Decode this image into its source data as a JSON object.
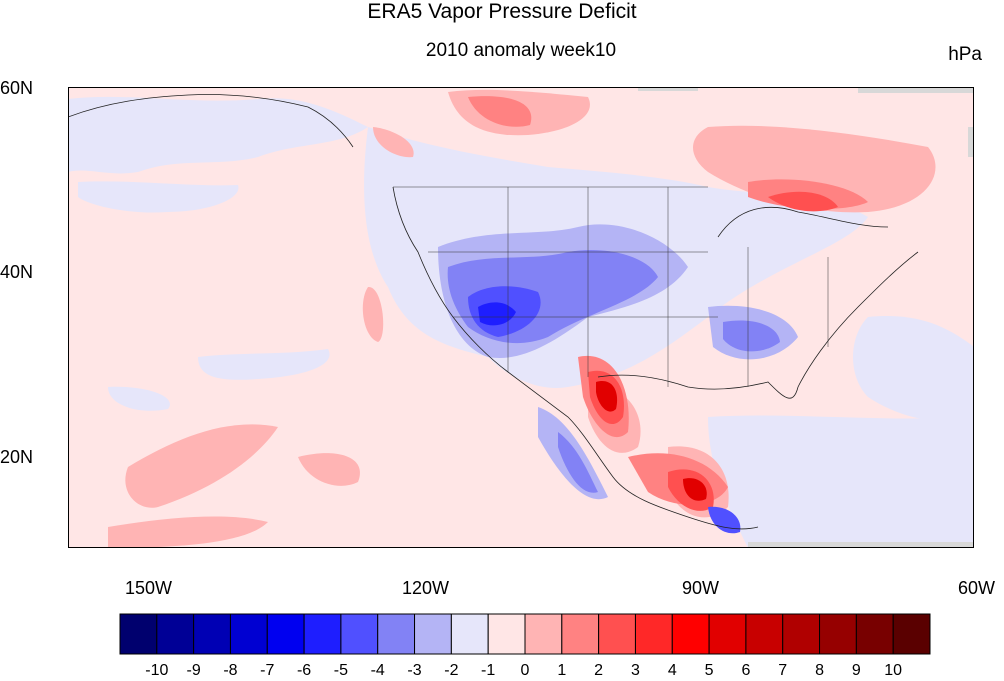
{
  "title": "ERA5 Vapor Pressure Deficit",
  "subtitle": "2010 anomaly week10",
  "units": "hPa",
  "map": {
    "projection": "cylindrical-equidistant",
    "lon_range": [
      -159,
      -60
    ],
    "lat_range": [
      10,
      60
    ],
    "lat_labels": [
      "60N",
      "40N",
      "20N"
    ],
    "lon_labels": [
      "150W",
      "120W",
      "90W",
      "60W"
    ],
    "variable": "vapor pressure deficit anomaly"
  },
  "colorbar": {
    "labels": [
      "-10",
      "-9",
      "-8",
      "-7",
      "-6",
      "-5",
      "-4",
      "-3",
      "-2",
      "-1",
      "0",
      "1",
      "2",
      "3",
      "4",
      "5",
      "6",
      "7",
      "8",
      "9",
      "10"
    ],
    "colors": [
      "#00006e",
      "#000096",
      "#0000b4",
      "#0000d2",
      "#0000f0",
      "#1e1eff",
      "#5050ff",
      "#8282f5",
      "#b4b4f5",
      "#e6e6fa",
      "#ffe6e6",
      "#ffb4b4",
      "#ff8282",
      "#ff5050",
      "#ff2828",
      "#ff0000",
      "#e10000",
      "#c80000",
      "#b00000",
      "#960000",
      "#780000",
      "#5a0000"
    ]
  }
}
